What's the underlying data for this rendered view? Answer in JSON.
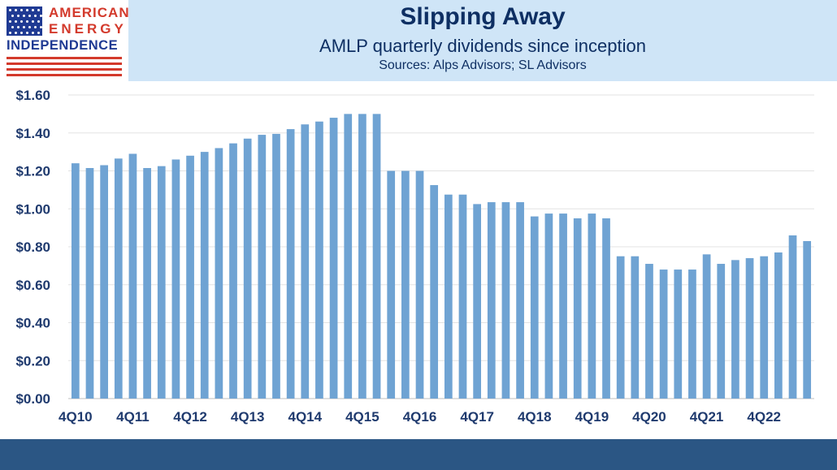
{
  "logo": {
    "line1": "AMERICAN",
    "line2": "ENERGY",
    "line3": "INDEPENDENCE"
  },
  "header": {
    "title": "Slipping Away",
    "subtitle": "AMLP quarterly dividends since inception",
    "source": "Sources: Alps Advisors; SL Advisors"
  },
  "colors": {
    "bar": "#6fa3d3",
    "header_band": "#cfe5f7",
    "footer_band": "#2b5684",
    "title_text": "#0e2f63",
    "axis_text": "#1f3a6e",
    "logo_red": "#d33a2c",
    "logo_blue": "#1f3a93"
  },
  "chart_data": {
    "type": "bar",
    "title": "Slipping Away",
    "subtitle": "AMLP quarterly dividends since inception",
    "xlabel": "",
    "ylabel": "",
    "ylim": [
      0,
      1.6
    ],
    "yticks": [
      "$0.00",
      "$0.20",
      "$0.40",
      "$0.60",
      "$0.80",
      "$1.00",
      "$1.20",
      "$1.40",
      "$1.60"
    ],
    "ytick_values": [
      0,
      0.2,
      0.4,
      0.6,
      0.8,
      1.0,
      1.2,
      1.4,
      1.6
    ],
    "xtick_labels": [
      "4Q10",
      "4Q11",
      "4Q12",
      "4Q13",
      "4Q14",
      "4Q15",
      "4Q16",
      "4Q17",
      "4Q18",
      "4Q19",
      "4Q20",
      "4Q21",
      "4Q22"
    ],
    "grid": true,
    "legend": "none",
    "categories": [
      "4Q10",
      "1Q11",
      "2Q11",
      "3Q11",
      "4Q11",
      "1Q12",
      "2Q12",
      "3Q12",
      "4Q12",
      "1Q13",
      "2Q13",
      "3Q13",
      "4Q13",
      "1Q14",
      "2Q14",
      "3Q14",
      "4Q14",
      "1Q15",
      "2Q15",
      "3Q15",
      "4Q15",
      "1Q16",
      "2Q16",
      "3Q16",
      "4Q16",
      "1Q17",
      "2Q17",
      "3Q17",
      "4Q17",
      "1Q18",
      "2Q18",
      "3Q18",
      "4Q18",
      "1Q19",
      "2Q19",
      "3Q19",
      "4Q19",
      "1Q20",
      "2Q20",
      "3Q20",
      "4Q20",
      "1Q21",
      "2Q21",
      "3Q21",
      "4Q21",
      "1Q22",
      "2Q22",
      "3Q22",
      "4Q22",
      "1Q23",
      "2Q23",
      "3Q23"
    ],
    "values": [
      1.24,
      1.215,
      1.23,
      1.265,
      1.29,
      1.215,
      1.225,
      1.26,
      1.28,
      1.3,
      1.32,
      1.345,
      1.37,
      1.39,
      1.395,
      1.42,
      1.445,
      1.46,
      1.48,
      1.5,
      1.5,
      1.5,
      1.2,
      1.2,
      1.2,
      1.125,
      1.075,
      1.075,
      1.025,
      1.035,
      1.035,
      1.035,
      0.96,
      0.975,
      0.975,
      0.95,
      0.975,
      0.95,
      0.75,
      0.75,
      0.71,
      0.68,
      0.68,
      0.68,
      0.76,
      0.71,
      0.73,
      0.74,
      0.75,
      0.77,
      0.86,
      0.83
    ]
  }
}
